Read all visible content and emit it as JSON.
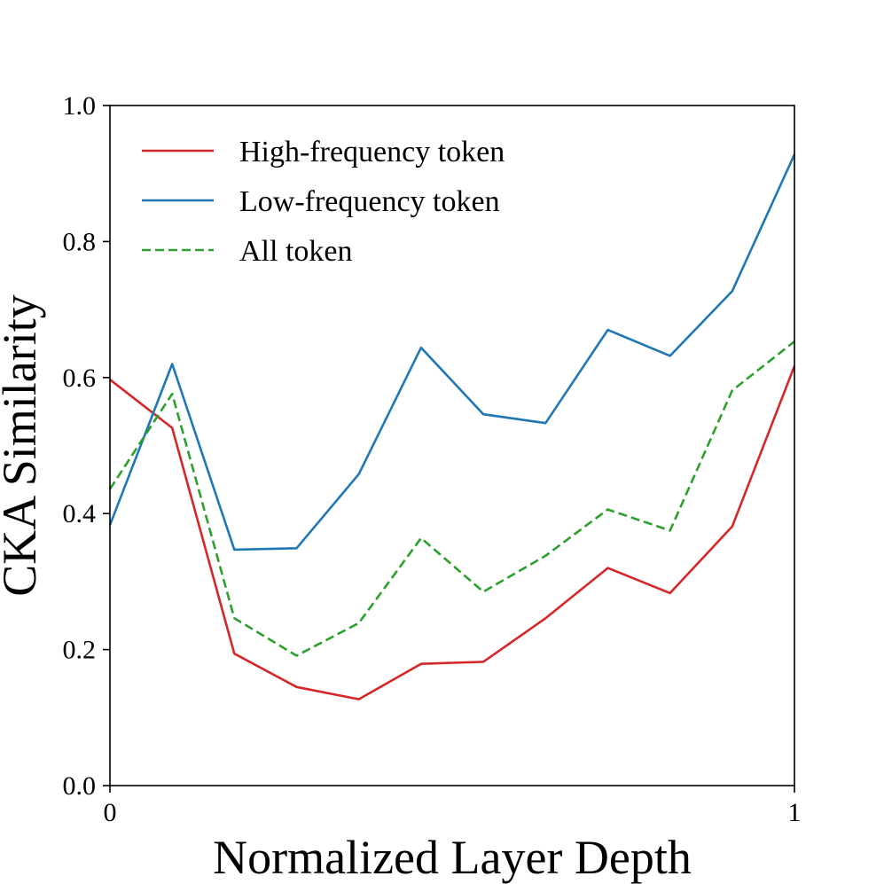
{
  "chart_data": {
    "type": "line",
    "title": "",
    "xlabel": "Normalized Layer Depth",
    "ylabel": "CKA Similarity",
    "xlim": [
      0,
      1
    ],
    "ylim": [
      0,
      1
    ],
    "x_ticks": [
      0,
      1
    ],
    "x_tick_labels": [
      "0",
      "1"
    ],
    "y_ticks": [
      0.0,
      0.2,
      0.4,
      0.6,
      0.8,
      1.0
    ],
    "y_tick_labels": [
      "0.0",
      "0.2",
      "0.4",
      "0.6",
      "0.8",
      "1.0"
    ],
    "grid": false,
    "legend_position": "upper-left",
    "x": [
      0.0,
      0.0909,
      0.1818,
      0.2727,
      0.3636,
      0.4545,
      0.5455,
      0.6364,
      0.7273,
      0.8182,
      0.9091,
      1.0
    ],
    "series": [
      {
        "name": "High-frequency token",
        "color": "#d62728",
        "dash": "solid",
        "values": [
          0.597,
          0.526,
          0.194,
          0.145,
          0.127,
          0.179,
          0.182,
          0.246,
          0.32,
          0.283,
          0.381,
          0.617
        ]
      },
      {
        "name": "Low-frequency token",
        "color": "#1f77b4",
        "dash": "solid",
        "values": [
          0.383,
          0.62,
          0.347,
          0.349,
          0.458,
          0.644,
          0.546,
          0.533,
          0.67,
          0.632,
          0.727,
          0.928
        ]
      },
      {
        "name": "All token",
        "color": "#2ca02c",
        "dash": "dashed",
        "values": [
          0.436,
          0.576,
          0.246,
          0.191,
          0.239,
          0.364,
          0.285,
          0.338,
          0.406,
          0.375,
          0.581,
          0.653
        ]
      }
    ]
  }
}
